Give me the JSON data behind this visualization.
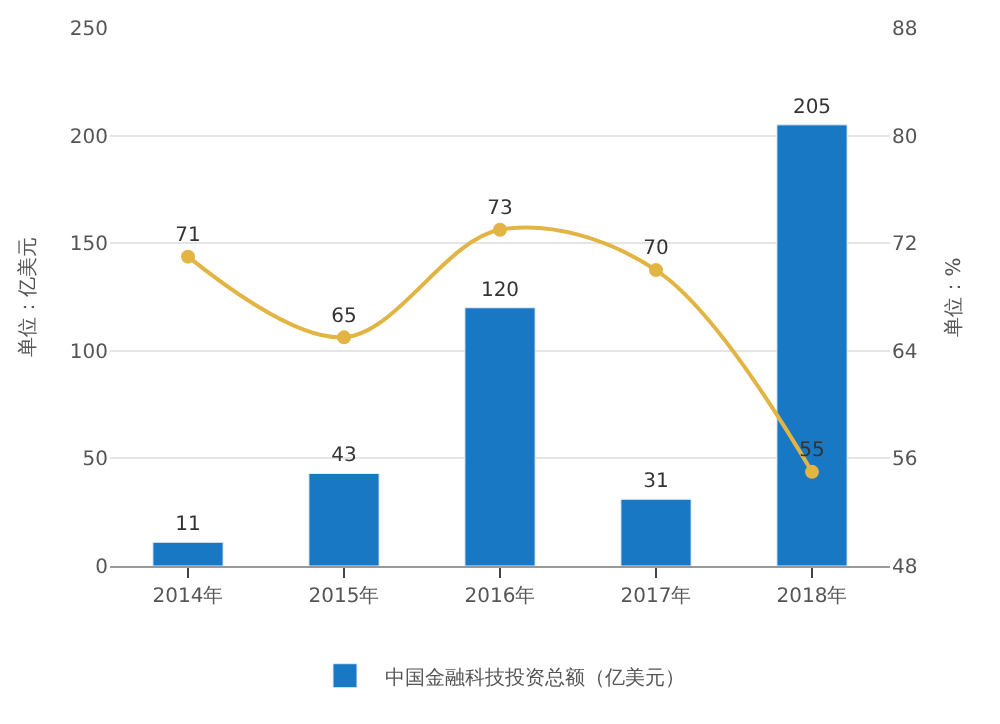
{
  "chart_data": {
    "type": "bar",
    "categories": [
      "2014年",
      "2015年",
      "2016年",
      "2017年",
      "2018年"
    ],
    "ylabel": "单位：亿美元",
    "y2label": "单位：%",
    "ylim": [
      0,
      250
    ],
    "yticks": [
      0,
      50,
      100,
      150,
      200,
      250
    ],
    "y2lim": [
      48,
      88
    ],
    "y2ticks": [
      48,
      56,
      64,
      72,
      80,
      88
    ],
    "series": [
      {
        "name": "中国金融科技投资总额（亿美元）",
        "color": "#1878c4",
        "values": [
          11,
          43,
          120,
          31,
          205
        ]
      },
      {
        "type": "line",
        "axis": "y2",
        "color": "#e2b443",
        "values": [
          71,
          65,
          73,
          70,
          55
        ],
        "marker": "circle"
      }
    ],
    "data_labels": true,
    "grid": "y",
    "legend": "bottom"
  }
}
